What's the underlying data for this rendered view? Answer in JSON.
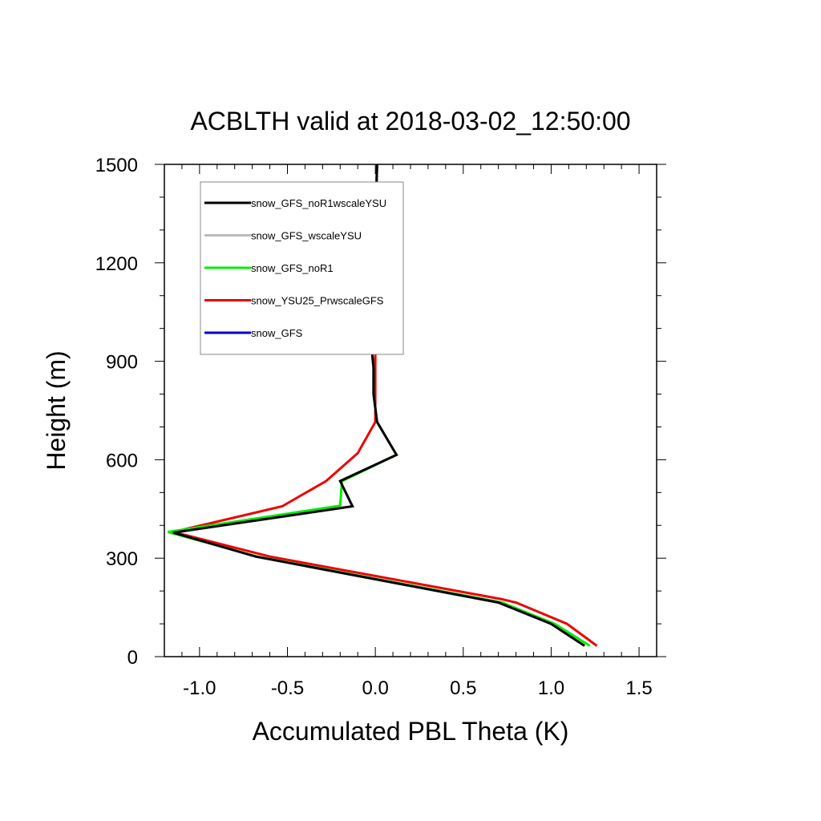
{
  "chart_data": {
    "type": "line",
    "title": "ACBLTH valid at 2018-03-02_12:50:00",
    "xlabel": "Accumulated PBL Theta (K)",
    "ylabel": "Height (m)",
    "xlim": [
      -1.2,
      1.6
    ],
    "ylim": [
      0,
      1500
    ],
    "xticks": [
      -1.0,
      -0.5,
      0.0,
      0.5,
      1.0,
      1.5
    ],
    "xtick_labels": [
      "-1.0",
      "-0.5",
      "0.0",
      "0.5",
      "1.0",
      "1.5"
    ],
    "yticks": [
      0,
      300,
      600,
      900,
      1200,
      1500
    ],
    "ytick_labels": [
      "0",
      "300",
      "600",
      "900",
      "1200",
      "1500"
    ],
    "legend_position": "top-left",
    "grid": false,
    "series": [
      {
        "name": "snow_GFS",
        "color": "#0000cc",
        "x": [],
        "y": []
      },
      {
        "name": "snow_YSU25_PrwscaleGFS",
        "color": "#ee0000",
        "x": [
          1.26,
          1.09,
          0.8,
          0.72,
          -0.6,
          -1.15,
          -0.53,
          -0.28,
          -0.1,
          0.0,
          0.0,
          0.0,
          0.0,
          0.0,
          0.0,
          0.0,
          0.01
        ],
        "y": [
          33,
          100,
          165,
          175,
          305,
          380,
          458,
          535,
          620,
          715,
          800,
          900,
          1000,
          1100,
          1200,
          1300,
          1500
        ]
      },
      {
        "name": "snow_GFS_noR1",
        "color": "#00ee00",
        "x": [
          1.22,
          1.02,
          0.72,
          -0.67,
          -1.18,
          -0.2,
          -0.19,
          0.12,
          0.01,
          -0.01,
          -0.01,
          -0.03,
          -0.01,
          0.0,
          0.0,
          0.01
        ],
        "y": [
          33,
          100,
          165,
          305,
          380,
          460,
          535,
          615,
          715,
          800,
          880,
          990,
          1100,
          1200,
          1300,
          1500
        ]
      },
      {
        "name": "snow_GFS_wscaleYSU",
        "color": "#bbbbbb",
        "x": [
          1.19,
          1.0,
          0.7,
          -0.68,
          -1.15,
          -0.13,
          -0.2,
          0.12,
          0.01,
          -0.01,
          -0.01,
          -0.03,
          -0.01,
          0.0,
          0.0,
          0.01
        ],
        "y": [
          33,
          100,
          165,
          305,
          378,
          458,
          535,
          615,
          715,
          800,
          880,
          990,
          1100,
          1200,
          1300,
          1500
        ]
      },
      {
        "name": "snow_GFS_noR1wscaleYSU",
        "color": "#000000",
        "x": [
          1.19,
          1.0,
          0.7,
          -0.68,
          -1.15,
          -0.13,
          -0.2,
          0.12,
          0.01,
          -0.01,
          -0.01,
          -0.03,
          -0.01,
          0.0,
          0.0,
          0.01
        ],
        "y": [
          33,
          100,
          165,
          305,
          378,
          458,
          535,
          615,
          715,
          800,
          880,
          990,
          1100,
          1200,
          1300,
          1500
        ]
      }
    ],
    "legend": [
      "snow_GFS_noR1wscaleYSU",
      "snow_GFS_wscaleYSU",
      "snow_GFS_noR1",
      "snow_YSU25_PrwscaleGFS",
      "snow_GFS"
    ]
  }
}
